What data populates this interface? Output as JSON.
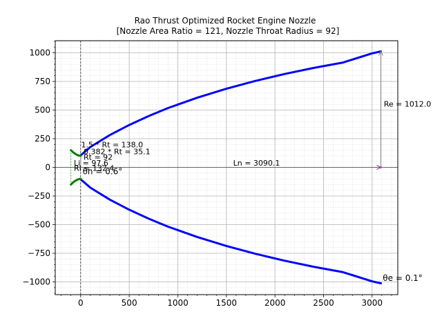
{
  "chart_data": {
    "type": "line",
    "title": "Rao Thrust Optimized Rocket Engine Nozzle",
    "subtitle": "[Nozzle Area Ratio = 121, Nozzle Throat Radius = 92]",
    "xlabel": "",
    "ylabel": "",
    "xlim": [
      -250,
      3300
    ],
    "ylim": [
      -1120,
      1120
    ],
    "x_ticks": [
      0,
      500,
      1000,
      1500,
      2000,
      2500,
      3000
    ],
    "y_ticks": [
      -1000,
      -750,
      -500,
      -250,
      0,
      250,
      500,
      750,
      1000
    ],
    "grid": true,
    "minor_grid": true,
    "colors": {
      "bell": "#0000ff",
      "throat": "#008000",
      "dimension": "#808080",
      "axis_line": "#000000",
      "marker": "#ff00ff"
    },
    "series": [
      {
        "color": "#0000ff",
        "x": [
          0,
          100,
          300,
          500,
          700,
          900,
          1200,
          1500,
          1800,
          2100,
          2400,
          2700,
          3000,
          3090
        ],
        "y": [
          105,
          178,
          282,
          370,
          448,
          518,
          608,
          686,
          755,
          815,
          868,
          915,
          995,
          1012
        ]
      },
      {
        "color": "#0000ff",
        "x": [
          0,
          100,
          300,
          500,
          700,
          900,
          1200,
          1500,
          1800,
          2100,
          2400,
          2700,
          3000,
          3090
        ],
        "y": [
          -105,
          -178,
          -282,
          -370,
          -448,
          -518,
          -608,
          -686,
          -755,
          -815,
          -868,
          -915,
          -995,
          -1012
        ]
      },
      {
        "color": "#008000",
        "x": [
          -100,
          -80,
          -60,
          -40,
          -20,
          0
        ],
        "y": [
          150,
          133,
          120,
          110,
          103,
          100
        ]
      },
      {
        "color": "#008000",
        "x": [
          -100,
          -80,
          -60,
          -40,
          -20,
          0
        ],
        "y": [
          -150,
          -133,
          -120,
          -110,
          -103,
          -100
        ]
      }
    ],
    "annotations": [
      {
        "text": "Re = 1012.0",
        "x": 3120,
        "y": 530
      },
      {
        "text": "Ln = 3090.1",
        "x": 1570,
        "y": 15
      },
      {
        "text": "1.5 * Rt = 138.0",
        "x": 5,
        "y": 175
      },
      {
        "text": "0.382 * Rt = 35.1",
        "x": 30,
        "y": 115
      },
      {
        "text": "Rt = 92",
        "x": 30,
        "y": 65
      },
      {
        "text": "Li = 97.6",
        "x": -70,
        "y": 15
      },
      {
        "text": "Rl = 132.4",
        "x": -70,
        "y": -30
      },
      {
        "text": "θn = 0.6°",
        "x": 20,
        "y": -60
      },
      {
        "text": "θe = 0.1°",
        "x": 3110,
        "y": -990
      }
    ]
  }
}
